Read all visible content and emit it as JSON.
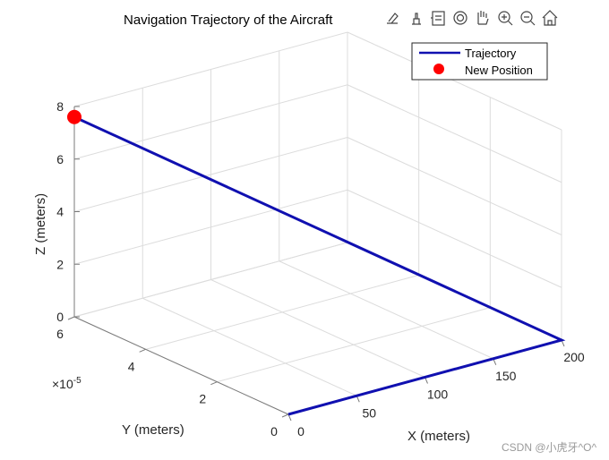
{
  "chart_data": {
    "type": "line3d",
    "title": "Navigation Trajectory of the Aircraft",
    "xlabel": "X (meters)",
    "ylabel": "Y (meters)",
    "zlabel": "Z (meters)",
    "y_exponent": "×10",
    "y_exponent_power": "-5",
    "xlim": [
      0,
      200
    ],
    "ylim": [
      0,
      6
    ],
    "zlim": [
      0,
      8
    ],
    "xticks": [
      "0",
      "50",
      "100",
      "150",
      "200"
    ],
    "yticks": [
      "0",
      "2",
      "4",
      "6"
    ],
    "zticks": [
      "0",
      "2",
      "4",
      "6",
      "8"
    ],
    "grid": true,
    "legend_position": "top-right",
    "series": [
      {
        "name": "Trajectory",
        "color": "#1010b0",
        "points": [
          {
            "x": 0,
            "y": 0,
            "z": 0
          },
          {
            "x": 200,
            "y": 0,
            "z": 0
          },
          {
            "x": 0,
            "y": 6,
            "z": 7.6
          }
        ]
      },
      {
        "name": "New Position",
        "color": "#ff0000",
        "marker": "circle",
        "points": [
          {
            "x": 0,
            "y": 6,
            "z": 7.6
          }
        ]
      }
    ]
  },
  "toolbar": {
    "icons": [
      "brush-icon",
      "data-tips-icon",
      "legend-icon",
      "rotate-icon",
      "pan-icon",
      "zoom-in-icon",
      "zoom-out-icon",
      "home-icon"
    ]
  },
  "watermark": "CSDN @小虎牙^O^"
}
